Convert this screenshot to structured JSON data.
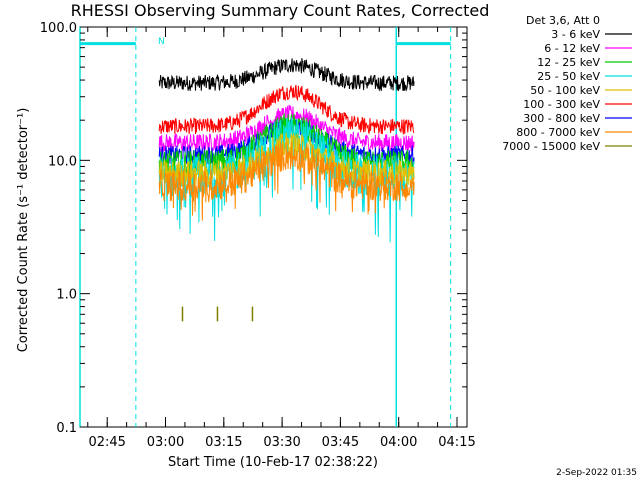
{
  "chart_data": {
    "type": "line",
    "title": "RHESSI Observing Summary Count Rates, Corrected",
    "xlabel": "Start Time (10-Feb-17 02:38:22)",
    "ylabel": "Corrected Count Rate (s⁻¹ detector⁻¹)",
    "yscale": "log",
    "ylim": [
      0.1,
      100
    ],
    "y_ticks": [
      "0.1",
      "1.0",
      "10.0",
      "100.0"
    ],
    "xlim_minutes": [
      -0.37,
      99.2
    ],
    "x_ticks": [
      {
        "label": "02:45",
        "minute": 6.63
      },
      {
        "label": "03:00",
        "minute": 21.63
      },
      {
        "label": "03:15",
        "minute": 36.63
      },
      {
        "label": "03:30",
        "minute": 51.63
      },
      {
        "label": "03:45",
        "minute": 66.63
      },
      {
        "label": "04:00",
        "minute": 81.63
      },
      {
        "label": "04:15",
        "minute": 96.63
      }
    ],
    "legend_header": "Det 3,6, Att 0",
    "series": [
      {
        "name": "3 - 6 keV",
        "color": "#000000",
        "base": 38,
        "peak": 52,
        "noise": 0.06
      },
      {
        "name": "6 - 12 keV",
        "color": "#ff00ff",
        "base": 13.5,
        "peak": 22,
        "noise": 0.07
      },
      {
        "name": "12 - 25 keV",
        "color": "#00cc00",
        "base": 9.5,
        "peak": 18,
        "noise": 0.1
      },
      {
        "name": "25 - 50 keV",
        "color": "#00e0e0",
        "base": 7.5,
        "peak": 15,
        "noise": 0.16
      },
      {
        "name": "50 - 100 keV",
        "color": "#e0c000",
        "base": 8.0,
        "peak": 13,
        "noise": 0.1
      },
      {
        "name": "100 - 300 keV",
        "color": "#ff0000",
        "base": 18,
        "peak": 33,
        "noise": 0.06
      },
      {
        "name": "300 - 800 keV",
        "color": "#0000ff",
        "base": 11,
        "peak": 18,
        "noise": 0.07
      },
      {
        "name": "800 - 7000 keV",
        "color": "#ff8800",
        "base": 6.5,
        "peak": 11,
        "noise": 0.12
      },
      {
        "name": "7000 - 15000 keV",
        "color": "#808000",
        "base": null,
        "peak": null,
        "noise": 0
      }
    ],
    "data_start_minute": 20.0,
    "data_end_minute": 85.6,
    "flare_peak_minute": 54.0,
    "olive_spikes_minute": [
      26.0,
      35.0,
      44.0
    ],
    "cyan_markers": {
      "solid_lines_minute": [
        -0.37,
        81.0
      ],
      "dashed_lines_minute": [
        14.0,
        95.0
      ],
      "bars": [
        [
          -0.37,
          14.0
        ],
        [
          81.0,
          95.0
        ]
      ],
      "bar_value": 75
    },
    "marker_label": "N"
  },
  "timestamp": "2-Sep-2022 01:35"
}
